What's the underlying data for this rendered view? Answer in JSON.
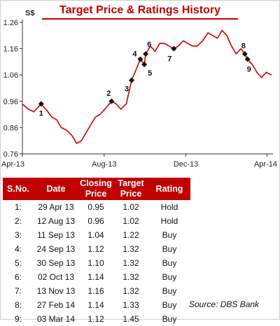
{
  "title": "Target Price & Ratings History",
  "source": "Source: DBS Bank",
  "chart_data": {
    "type": "line",
    "title": "Target Price & Ratings History",
    "ylabel": "S$",
    "ylim": [
      0.76,
      1.26
    ],
    "yticks": [
      "0.76",
      "0.86",
      "0.96",
      "1.06",
      "1.16",
      "1.26"
    ],
    "xticks": [
      "Apr-13",
      "Aug-13",
      "Dec-13",
      "Apr-14"
    ],
    "xtick_dates": [
      "2013-04-01",
      "2013-08-01",
      "2013-12-01",
      "2014-04-01"
    ],
    "xlim": [
      "2013-04-01",
      "2014-04-10"
    ],
    "grid": false,
    "series": [
      {
        "values": [
          [
            "2013-04-01",
            0.95
          ],
          [
            "2013-04-10",
            0.93
          ],
          [
            "2013-04-18",
            0.92
          ],
          [
            "2013-04-29",
            0.95
          ],
          [
            "2013-05-06",
            0.93
          ],
          [
            "2013-05-15",
            0.9
          ],
          [
            "2013-05-22",
            0.89
          ],
          [
            "2013-05-29",
            0.86
          ],
          [
            "2013-06-06",
            0.85
          ],
          [
            "2013-06-14",
            0.83
          ],
          [
            "2013-06-21",
            0.8
          ],
          [
            "2013-06-28",
            0.81
          ],
          [
            "2013-07-05",
            0.84
          ],
          [
            "2013-07-12",
            0.87
          ],
          [
            "2013-07-19",
            0.9
          ],
          [
            "2013-07-26",
            0.91
          ],
          [
            "2013-08-02",
            0.93
          ],
          [
            "2013-08-12",
            0.96
          ],
          [
            "2013-08-19",
            0.95
          ],
          [
            "2013-08-26",
            0.93
          ],
          [
            "2013-09-03",
            0.95
          ],
          [
            "2013-09-11",
            1.04
          ],
          [
            "2013-09-16",
            1.07
          ],
          [
            "2013-09-24",
            1.12
          ],
          [
            "2013-09-30",
            1.1
          ],
          [
            "2013-10-02",
            1.14
          ],
          [
            "2013-10-09",
            1.17
          ],
          [
            "2013-10-16",
            1.15
          ],
          [
            "2013-10-23",
            1.18
          ],
          [
            "2013-10-30",
            1.18
          ],
          [
            "2013-11-06",
            1.17
          ],
          [
            "2013-11-13",
            1.16
          ],
          [
            "2013-11-20",
            1.17
          ],
          [
            "2013-11-27",
            1.19
          ],
          [
            "2013-12-04",
            1.18
          ],
          [
            "2013-12-11",
            1.17
          ],
          [
            "2013-12-18",
            1.17
          ],
          [
            "2013-12-26",
            1.19
          ],
          [
            "2014-01-03",
            1.22
          ],
          [
            "2014-01-10",
            1.21
          ],
          [
            "2014-01-17",
            1.2
          ],
          [
            "2014-01-24",
            1.23
          ],
          [
            "2014-01-31",
            1.21
          ],
          [
            "2014-02-07",
            1.17
          ],
          [
            "2014-02-14",
            1.14
          ],
          [
            "2014-02-21",
            1.16
          ],
          [
            "2014-02-27",
            1.14
          ],
          [
            "2014-03-03",
            1.12
          ],
          [
            "2014-03-10",
            1.1
          ],
          [
            "2014-03-17",
            1.07
          ],
          [
            "2014-03-24",
            1.05
          ],
          [
            "2014-03-31",
            1.07
          ],
          [
            "2014-04-08",
            1.06
          ]
        ]
      }
    ],
    "annotations": [
      {
        "label": "1",
        "date": "2013-04-29",
        "price": 0.95
      },
      {
        "label": "2",
        "date": "2013-08-12",
        "price": 0.96
      },
      {
        "label": "3",
        "date": "2013-09-11",
        "price": 1.04
      },
      {
        "label": "4",
        "date": "2013-09-24",
        "price": 1.12
      },
      {
        "label": "5",
        "date": "2013-09-30",
        "price": 1.1
      },
      {
        "label": "6",
        "date": "2013-10-02",
        "price": 1.14
      },
      {
        "label": "7",
        "date": "2013-11-13",
        "price": 1.16
      },
      {
        "label": "8",
        "date": "2014-02-27",
        "price": 1.14
      },
      {
        "label": "9",
        "date": "2014-03-03",
        "price": 1.12
      }
    ]
  },
  "table": {
    "headers": [
      "S.No.",
      "Date",
      "Closing Price",
      "Target Price",
      "Rating"
    ],
    "rows": [
      [
        "1:",
        "29 Apr 13",
        "0.95",
        "1.02",
        "Hold"
      ],
      [
        "2:",
        "12 Aug 13",
        "0.96",
        "1.02",
        "Hold"
      ],
      [
        "3:",
        "11 Sep 13",
        "1.04",
        "1.22",
        "Buy"
      ],
      [
        "4:",
        "24 Sep 13",
        "1.12",
        "1.32",
        "Buy"
      ],
      [
        "5:",
        "30 Sep 13",
        "1.10",
        "1.32",
        "Buy"
      ],
      [
        "6:",
        "02 Oct 13",
        "1.14",
        "1.32",
        "Buy"
      ],
      [
        "7:",
        "13 Nov 13",
        "1.16",
        "1.32",
        "Buy"
      ],
      [
        "8:",
        "27 Feb 14",
        "1.14",
        "1.33",
        "Buy"
      ],
      [
        "9:",
        "03 Mar 14",
        "1.12",
        "1.45",
        "Buy"
      ]
    ]
  }
}
